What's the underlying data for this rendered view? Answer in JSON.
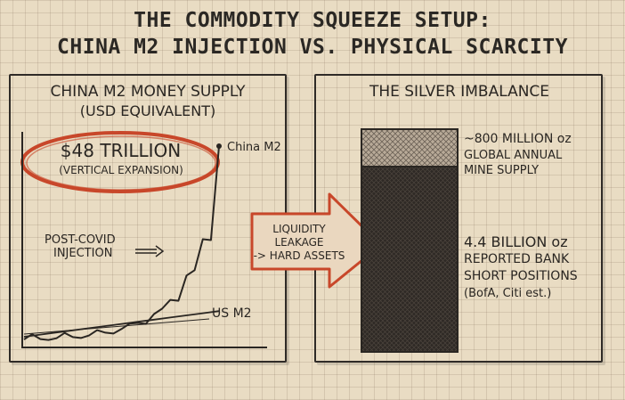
{
  "title": {
    "line1": "THE COMMODITY SQUEEZE SETUP:",
    "line2": "CHINA M2 INJECTION VS. PHYSICAL SCARCITY"
  },
  "left_panel": {
    "heading1": "CHINA M2 MONEY SUPPLY",
    "heading2": "(USD EQUIVALENT)",
    "callout_value": "$48 TRILLION",
    "callout_sub": "(VERTICAL EXPANSION)",
    "china_label": "China M2",
    "us_label": "US M2",
    "post_covid_1": "POST-COVID",
    "post_covid_2": "INJECTION"
  },
  "arrow": {
    "line1": "LIQUIDITY",
    "line2": "LEAKAGE",
    "line3": "-> HARD ASSETS"
  },
  "right_panel": {
    "heading": "THE SILVER IMBALANCE",
    "supply_1": "~800 MILLION oz",
    "supply_2": "GLOBAL ANNUAL",
    "supply_3": "MINE SUPPLY",
    "short_1": "4.4 BILLION oz",
    "short_2": "REPORTED BANK",
    "short_3": "SHORT POSITIONS",
    "short_4": "(BofA, Citi est.)"
  },
  "colors": {
    "ink": "#2a2622",
    "accent_red": "#c8472a",
    "paper": "#e9dcc3"
  },
  "chart_data": [
    {
      "type": "line",
      "series": [
        {
          "name": "China M2",
          "values": [
            0.2,
            0.3,
            0.5,
            0.8,
            1.2,
            1.9,
            2.8,
            4.3,
            6.5,
            10,
            16,
            25,
            48
          ]
        },
        {
          "name": "US M2",
          "values": [
            0.2,
            0.3,
            0.4,
            0.6,
            0.8,
            1.0,
            1.3,
            1.6,
            2.0,
            2.5,
            3.0,
            3.5,
            4.0
          ]
        }
      ]
    },
    {
      "type": "bar",
      "categories": [
        "GLOBAL ANNUAL MINE SUPPLY",
        "REPORTED BANK SHORT POSITIONS"
      ],
      "values": [
        0.8,
        4.4
      ],
      "unit": "oz"
    }
  ]
}
